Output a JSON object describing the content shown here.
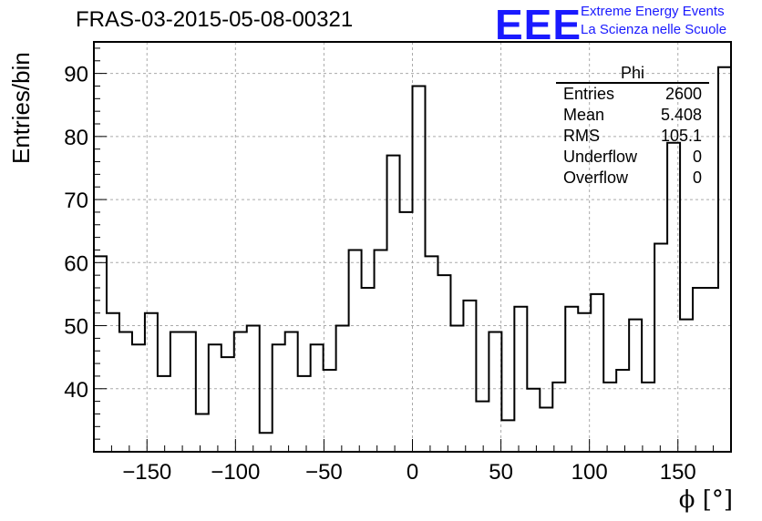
{
  "header": {
    "title": "FRAS-03-2015-05-08-00321",
    "logo_text": "EEE",
    "logo_line1": "Extreme Energy Events",
    "logo_line2": "La Scienza nelle Scuole"
  },
  "stats": {
    "title": "Phi",
    "rows": [
      {
        "label": "Entries",
        "value": "2600"
      },
      {
        "label": "Mean",
        "value": "5.408"
      },
      {
        "label": "RMS",
        "value": "105.1"
      },
      {
        "label": "Underflow",
        "value": "0"
      },
      {
        "label": "Overflow",
        "value": "0"
      }
    ]
  },
  "colors": {
    "line": "#000000",
    "grid": "#aaaaaa",
    "logo": "#1a1aff"
  },
  "chart_data": {
    "type": "bar",
    "histogram": true,
    "title": "FRAS-03-2015-05-08-00321",
    "xlabel": "ϕ [°]",
    "ylabel": "Entries/bin",
    "xlim": [
      -180,
      180
    ],
    "ylim": [
      30,
      95
    ],
    "bin_width": 7.2,
    "x_ticks": [
      -150,
      -100,
      -50,
      0,
      50,
      100,
      150
    ],
    "x_tick_labels": [
      "−150",
      "−100",
      "−50",
      "0",
      "50",
      "100",
      "150"
    ],
    "y_ticks": [
      40,
      50,
      60,
      70,
      80,
      90
    ],
    "y_tick_labels": [
      "40",
      "50",
      "60",
      "70",
      "80",
      "90"
    ],
    "grid": true,
    "values": [
      61,
      52,
      49,
      47,
      52,
      42,
      49,
      49,
      36,
      47,
      45,
      49,
      50,
      33,
      47,
      49,
      42,
      47,
      43,
      50,
      62,
      56,
      62,
      77,
      68,
      88,
      61,
      58,
      50,
      54,
      38,
      49,
      35,
      53,
      40,
      37,
      41,
      53,
      52,
      55,
      41,
      43,
      51,
      41,
      63,
      79,
      51,
      56,
      56,
      91
    ]
  }
}
